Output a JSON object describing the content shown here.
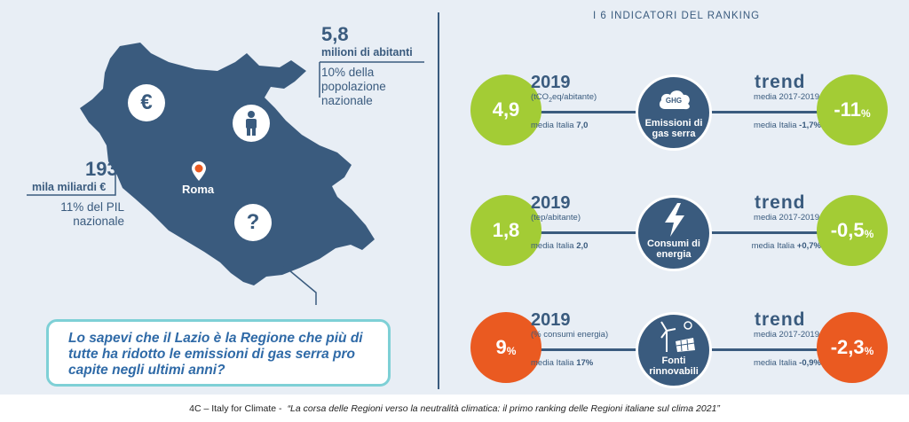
{
  "left": {
    "population": {
      "value": "5,8",
      "label": "milioni di abitanti",
      "note": "10% della popolazione nazionale"
    },
    "gdp": {
      "value": "193",
      "label": "mila miliardi €",
      "note": "11% del PIL nazionale"
    },
    "city": "Roma",
    "icons": {
      "euro": "€",
      "question": "?"
    },
    "callout": "Lo sapevi che il Lazio è la Regione che più di tutte ha ridotto le emissioni di gas serra pro capite negli ultimi anni?"
  },
  "indicators": {
    "title": "I 6 INDICATORI DEL RANKING",
    "rows": [
      {
        "value": "4,9",
        "value_suffix": "",
        "value_color": "green",
        "year": "2019",
        "unit_html": "(tCO2eq/abitante)",
        "media_label": "media Italia",
        "media_value": "7,0",
        "badge_icon": "cloud-ghg-icon",
        "badge_icon_text": "GHG",
        "badge_label": "Emissioni di gas serra",
        "trend_label": "trend",
        "trend_period": "media 2017-2019",
        "trend_media_label": "media Italia",
        "trend_media_value": "-1,7%",
        "trend_value": "-11",
        "trend_suffix": "%",
        "trend_color": "green"
      },
      {
        "value": "1,8",
        "value_suffix": "",
        "value_color": "green",
        "year": "2019",
        "unit_html": "(tep/abitante)",
        "media_label": "media Italia",
        "media_value": "2,0",
        "badge_icon": "lightning-icon",
        "badge_icon_text": "",
        "badge_label": "Consumi di energia",
        "trend_label": "trend",
        "trend_period": "media 2017-2019",
        "trend_media_label": "media Italia",
        "trend_media_value": "+0,7%",
        "trend_value": "-0,5",
        "trend_suffix": "%",
        "trend_color": "green"
      },
      {
        "value": "9",
        "value_suffix": "%",
        "value_color": "orange",
        "year": "2019",
        "unit_html": "(% consumi energia)",
        "media_label": "media Italia",
        "media_value": "17%",
        "badge_icon": "wind-solar-icon",
        "badge_icon_text": "",
        "badge_label": "Fonti rinnovabili",
        "trend_label": "trend",
        "trend_period": "media 2017-2019",
        "trend_media_label": "media Italia",
        "trend_media_value": "-0,9%",
        "trend_value": "-2,3",
        "trend_suffix": "%",
        "trend_color": "orange"
      }
    ]
  },
  "footer": {
    "source": "4C – Italy for Climate -",
    "title": "“La corsa delle Regioni verso la neutralità climatica: il primo ranking delle Regioni italiane sul clima 2021”"
  },
  "colors": {
    "navy": "#3a5b7e",
    "green": "#a3cc35",
    "orange": "#ea5a21",
    "teal": "#7ed0d6"
  }
}
